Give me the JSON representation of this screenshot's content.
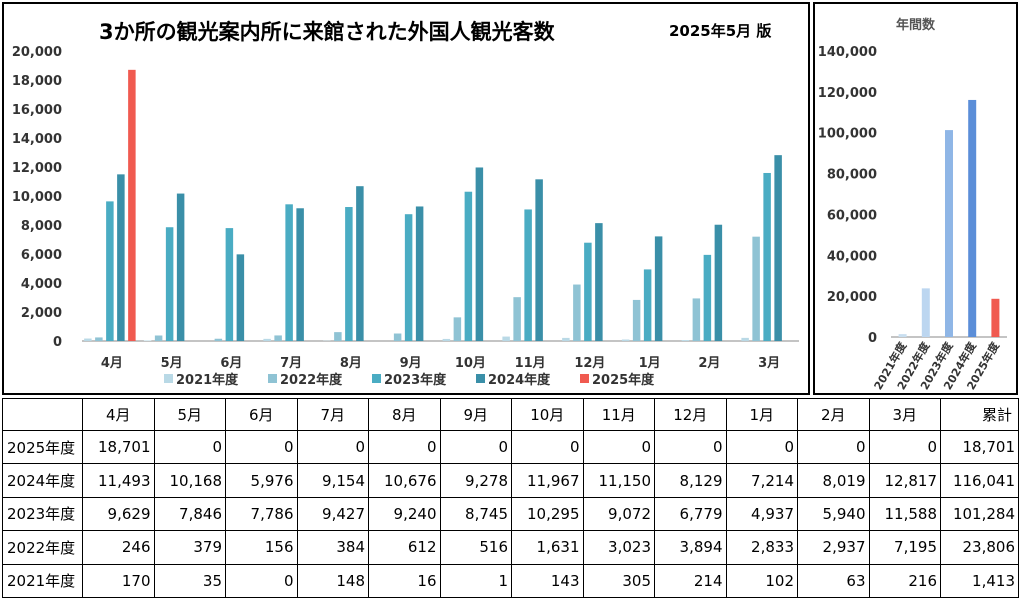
{
  "title": "3か所の観光案内所に来館された外国人観光客数",
  "edition": "2025年5月 版",
  "annual_title": "年間数",
  "colors": {
    "2021年度": "#b9d9e6",
    "2022年度": "#8fc3d4",
    "2023年度": "#4aacc3",
    "2024年度": "#3a8fa8",
    "2025年度": "#f05a50",
    "annual_2021年度": "#c9dff0",
    "annual_2022年度": "#bcd6f0",
    "annual_2023年度": "#8fb6e6",
    "annual_2024年度": "#5b8ed8",
    "annual_2025年度": "#f05a50"
  },
  "chart_data": [
    {
      "type": "bar",
      "categories": [
        "4月",
        "5月",
        "6月",
        "7月",
        "8月",
        "9月",
        "10月",
        "11月",
        "12月",
        "1月",
        "2月",
        "3月"
      ],
      "series": [
        {
          "name": "2021年度",
          "values": [
            170,
            35,
            0,
            148,
            16,
            1,
            143,
            305,
            214,
            102,
            63,
            216
          ]
        },
        {
          "name": "2022年度",
          "values": [
            246,
            379,
            156,
            384,
            612,
            516,
            1631,
            3023,
            3894,
            2833,
            2937,
            7195
          ]
        },
        {
          "name": "2023年度",
          "values": [
            9629,
            7846,
            7786,
            9427,
            9240,
            8745,
            10295,
            9072,
            6779,
            4937,
            5940,
            11588
          ]
        },
        {
          "name": "2024年度",
          "values": [
            11493,
            10168,
            5976,
            9154,
            10676,
            9278,
            11967,
            11150,
            8129,
            7214,
            8019,
            12817
          ]
        },
        {
          "name": "2025年度",
          "values": [
            18701,
            0,
            0,
            0,
            0,
            0,
            0,
            0,
            0,
            0,
            0,
            0
          ]
        }
      ],
      "ylim": [
        0,
        20000
      ],
      "yticks": [
        "0",
        "2,000",
        "4,000",
        "6,000",
        "8,000",
        "10,000",
        "12,000",
        "14,000",
        "16,000",
        "18,000",
        "20,000"
      ],
      "legend_position": "bottom",
      "grid": false
    },
    {
      "type": "bar",
      "title": "年間数",
      "categories": [
        "2021年度",
        "2022年度",
        "2023年度",
        "2024年度",
        "2025年度"
      ],
      "values": [
        1413,
        23806,
        101284,
        116041,
        18701
      ],
      "ylim": [
        0,
        140000
      ],
      "yticks": [
        "0",
        "20,000",
        "40,000",
        "60,000",
        "80,000",
        "100,000",
        "120,000",
        "140,000"
      ],
      "grid": false
    }
  ],
  "table": {
    "headers": [
      "",
      "4月",
      "5月",
      "6月",
      "7月",
      "8月",
      "9月",
      "10月",
      "11月",
      "12月",
      "1月",
      "2月",
      "3月",
      "累計"
    ],
    "rows": [
      {
        "label": "2025年度",
        "cells": [
          "18,701",
          "0",
          "0",
          "0",
          "0",
          "0",
          "0",
          "0",
          "0",
          "0",
          "0",
          "0",
          "18,701"
        ]
      },
      {
        "label": "2024年度",
        "cells": [
          "11,493",
          "10,168",
          "5,976",
          "9,154",
          "10,676",
          "9,278",
          "11,967",
          "11,150",
          "8,129",
          "7,214",
          "8,019",
          "12,817",
          "116,041"
        ]
      },
      {
        "label": "2023年度",
        "cells": [
          "9,629",
          "7,846",
          "7,786",
          "9,427",
          "9,240",
          "8,745",
          "10,295",
          "9,072",
          "6,779",
          "4,937",
          "5,940",
          "11,588",
          "101,284"
        ]
      },
      {
        "label": "2022年度",
        "cells": [
          "246",
          "379",
          "156",
          "384",
          "612",
          "516",
          "1,631",
          "3,023",
          "3,894",
          "2,833",
          "2,937",
          "7,195",
          "23,806"
        ]
      },
      {
        "label": "2021年度",
        "cells": [
          "170",
          "35",
          "0",
          "148",
          "16",
          "1",
          "143",
          "305",
          "214",
          "102",
          "63",
          "216",
          "1,413"
        ]
      }
    ]
  }
}
